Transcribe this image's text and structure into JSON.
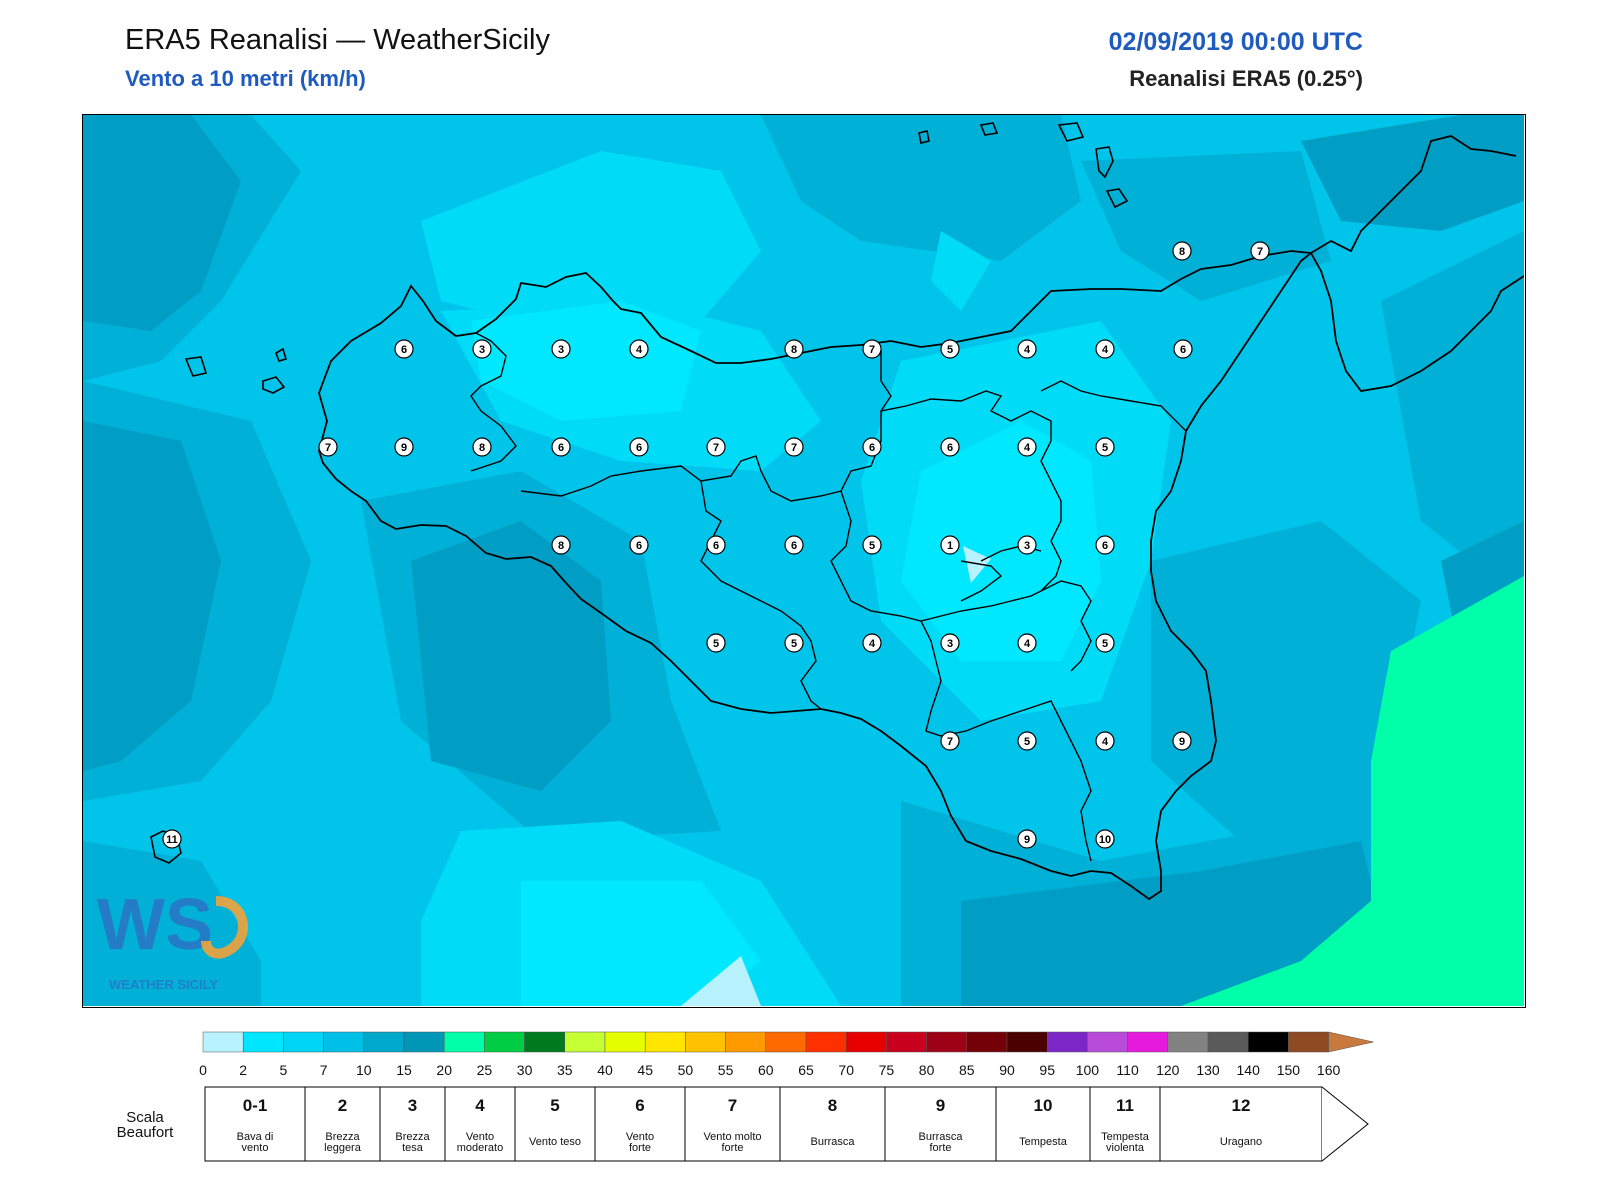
{
  "header": {
    "title": "ERA5 Reanalisi — WeatherSicily",
    "subtitle": "Vento a 10 metri (km/h)",
    "datetime": "02/09/2019 00:00 UTC",
    "model": "Reanalisi ERA5 (0.25°)"
  },
  "logo": {
    "text": "WEATHER SICILY",
    "letters": "WS"
  },
  "station_values": [
    "8",
    "7",
    "6",
    "3",
    "3",
    "4",
    "8",
    "7",
    "5",
    "4",
    "4",
    "6",
    "7",
    "9",
    "8",
    "6",
    "6",
    "7",
    "7",
    "6",
    "6",
    "4",
    "5",
    "8",
    "6",
    "6",
    "6",
    "5",
    "1",
    "3",
    "6",
    "5",
    "5",
    "4",
    "3",
    "4",
    "5",
    "7",
    "5",
    "4",
    "9",
    "11",
    "9",
    "10"
  ],
  "colorbar": {
    "ticks": [
      "0",
      "2",
      "5",
      "7",
      "10",
      "15",
      "20",
      "25",
      "30",
      "35",
      "40",
      "45",
      "50",
      "55",
      "60",
      "65",
      "70",
      "75",
      "80",
      "85",
      "90",
      "95",
      "100",
      "110",
      "120",
      "130",
      "140",
      "150",
      "160"
    ],
    "colors": [
      "#b8f2ff",
      "#00e6ff",
      "#00d5f5",
      "#00c0e8",
      "#00a8cc",
      "#0096b6",
      "#00ffa8",
      "#00cc44",
      "#007a1e",
      "#c6ff33",
      "#e6ff00",
      "#ffe600",
      "#ffc200",
      "#ff9a00",
      "#ff6a00",
      "#ff3000",
      "#e60000",
      "#c8001e",
      "#9e0016",
      "#740008",
      "#4a0000",
      "#7c26c8",
      "#b84cd8",
      "#e61adc",
      "#828282",
      "#5a5a5a",
      "#000000",
      "#8e4a22",
      "#c87a3c"
    ]
  },
  "beaufort": {
    "label": "Scala Beaufort",
    "cells": [
      {
        "num": "0-1",
        "name": "Bava di vento"
      },
      {
        "num": "2",
        "name": "Brezza leggera"
      },
      {
        "num": "3",
        "name": "Brezza tesa"
      },
      {
        "num": "4",
        "name": "Vento moderato"
      },
      {
        "num": "5",
        "name": "Vento teso"
      },
      {
        "num": "6",
        "name": "Vento forte"
      },
      {
        "num": "7",
        "name": "Vento molto forte"
      },
      {
        "num": "8",
        "name": "Burrasca"
      },
      {
        "num": "9",
        "name": "Burrasca forte"
      },
      {
        "num": "10",
        "name": "Tempesta"
      },
      {
        "num": "11",
        "name": "Tempesta violenta"
      },
      {
        "num": "12",
        "name": "Uragano"
      }
    ]
  }
}
